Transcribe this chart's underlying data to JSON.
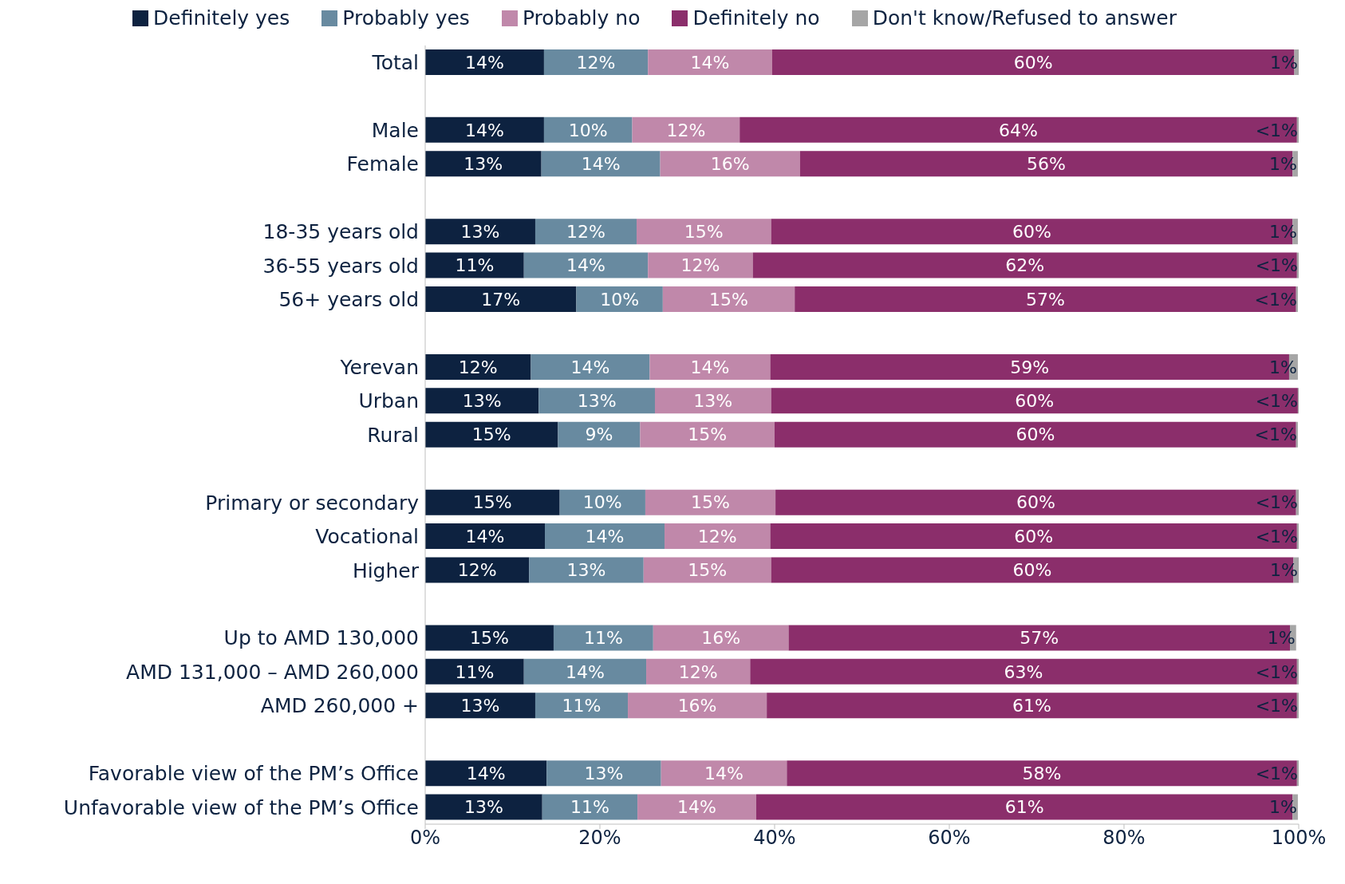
{
  "chart_data": {
    "type": "bar",
    "orientation": "horizontal",
    "stacked": true,
    "legend": "top",
    "categories": [
      "Total",
      null,
      "Male",
      "Female",
      null,
      "18-35 years old",
      "36-55 years old",
      "56+ years old",
      null,
      "Yerevan",
      "Urban",
      "Rural",
      null,
      "Primary or secondary",
      "Vocational",
      "Higher",
      null,
      "Up to AMD 130,000",
      "AMD 131,000 – AMD 260,000",
      "AMD 260,000 +",
      null,
      "Favorable view of the PM’s Office",
      "Unfavorable view of the PM’s Office"
    ],
    "xlim": [
      0,
      100
    ],
    "xticks": [
      {
        "value": 0,
        "label": "0%"
      },
      {
        "value": 20,
        "label": "20%"
      },
      {
        "value": 40,
        "label": "40%"
      },
      {
        "value": 60,
        "label": "60%"
      },
      {
        "value": 80,
        "label": "80%"
      },
      {
        "value": 100,
        "label": "100%"
      }
    ],
    "series": [
      {
        "name": "Definitely yes",
        "color": "#0d2240",
        "values": [
          13.6,
          null,
          13.6,
          13.3,
          null,
          12.6,
          11.3,
          17.3,
          null,
          12.1,
          13.0,
          15.2,
          null,
          15.4,
          13.7,
          11.9,
          null,
          14.7,
          11.3,
          12.6,
          null,
          13.9,
          13.4
        ],
        "value_labels": [
          "14%",
          null,
          "14%",
          "13%",
          null,
          "13%",
          "11%",
          "17%",
          null,
          "12%",
          "13%",
          "15%",
          null,
          "15%",
          "14%",
          "12%",
          null,
          "15%",
          "11%",
          "13%",
          null,
          "14%",
          "13%"
        ]
      },
      {
        "name": "Probably yes",
        "color": "#688aa0",
        "values": [
          11.9,
          null,
          10.1,
          13.6,
          null,
          11.6,
          14.2,
          9.9,
          null,
          13.6,
          13.3,
          9.4,
          null,
          9.8,
          13.7,
          13.1,
          null,
          11.4,
          14.0,
          10.6,
          null,
          13.1,
          10.9
        ],
        "value_labels": [
          "12%",
          null,
          "10%",
          "14%",
          null,
          "12%",
          "14%",
          "10%",
          null,
          "14%",
          "13%",
          "9%",
          null,
          "10%",
          "14%",
          "13%",
          null,
          "11%",
          "14%",
          "11%",
          null,
          "13%",
          "11%"
        ]
      },
      {
        "name": "Probably no",
        "color": "#c088aa",
        "values": [
          14.2,
          null,
          12.3,
          16.0,
          null,
          15.4,
          12.0,
          15.1,
          null,
          13.8,
          13.3,
          15.4,
          null,
          14.9,
          12.1,
          14.6,
          null,
          15.5,
          11.9,
          15.9,
          null,
          14.4,
          13.6
        ],
        "value_labels": [
          "14%",
          null,
          "12%",
          "16%",
          null,
          "15%",
          "12%",
          "15%",
          null,
          "14%",
          "13%",
          "15%",
          null,
          "15%",
          "12%",
          "15%",
          null,
          "16%",
          "12%",
          "16%",
          null,
          "14%",
          "14%"
        ]
      },
      {
        "name": "Definitely no",
        "color": "#8b2e6b",
        "values": [
          59.8,
          null,
          63.8,
          56.4,
          null,
          59.7,
          62.3,
          57.4,
          null,
          59.4,
          60.3,
          59.7,
          null,
          59.6,
          60.3,
          59.8,
          null,
          57.4,
          62.6,
          60.7,
          null,
          58.4,
          61.4
        ],
        "value_labels": [
          "60%",
          null,
          "64%",
          "56%",
          null,
          "60%",
          "62%",
          "57%",
          null,
          "59%",
          "60%",
          "60%",
          null,
          "60%",
          "60%",
          "60%",
          null,
          "57%",
          "63%",
          "61%",
          null,
          "58%",
          "61%"
        ]
      },
      {
        "name": "Don't know/Refused to answer",
        "color": "#a6a6a6",
        "values": [
          0.5,
          null,
          0.2,
          0.6,
          null,
          0.6,
          0.2,
          0.2,
          null,
          1.0,
          0.1,
          0.2,
          null,
          0.3,
          0.2,
          0.6,
          null,
          0.7,
          0.2,
          0.2,
          null,
          0.2,
          0.6
        ],
        "value_labels": [
          "1%",
          null,
          "<1%",
          "1%",
          null,
          "1%",
          "<1%",
          "<1%",
          null,
          "1%",
          "<1%",
          "<1%",
          null,
          "<1%",
          "<1%",
          "1%",
          null,
          "1%",
          "<1%",
          "<1%",
          null,
          "<1%",
          "1%"
        ]
      }
    ]
  }
}
